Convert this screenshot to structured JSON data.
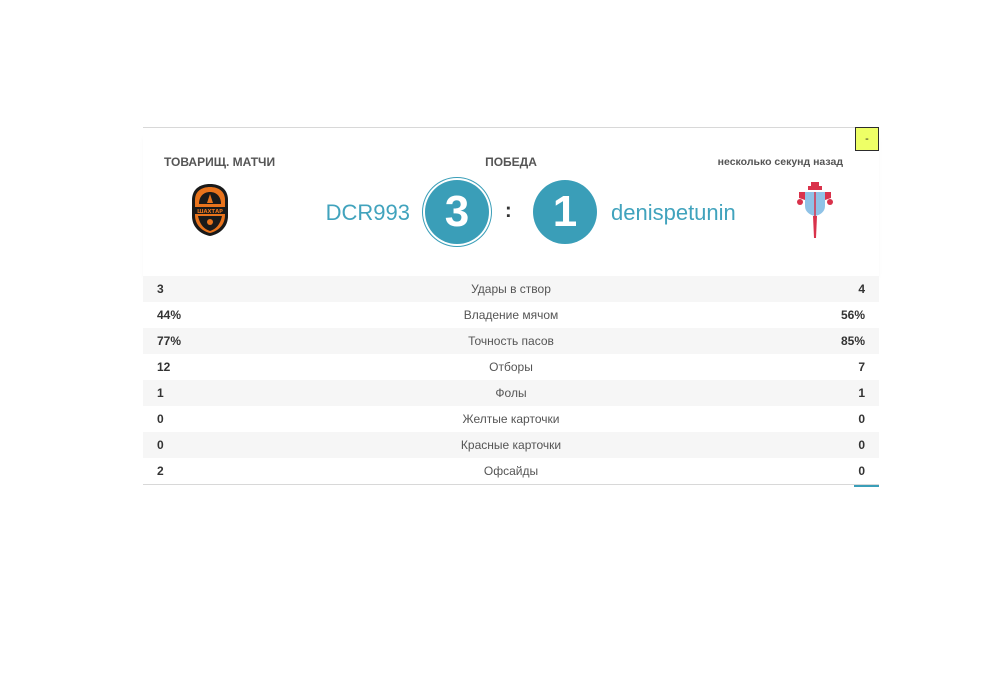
{
  "match": {
    "type_label": "ТОВАРИЩ. МАТЧИ",
    "result_label": "ПОБЕДА",
    "time_label": "несколько секунд назад",
    "flag_label": "-",
    "separator": ":"
  },
  "home": {
    "name": "DCR993",
    "score": "3",
    "logo_icon": "shakhtar-crest-icon",
    "logo_text": "ШАХТАР"
  },
  "away": {
    "name": "denispetunin",
    "score": "1",
    "logo_icon": "celta-crest-icon"
  },
  "stats": [
    {
      "home": "3",
      "label": "Удары в створ",
      "away": "4"
    },
    {
      "home": "44%",
      "label": "Владение мячом",
      "away": "56%"
    },
    {
      "home": "77%",
      "label": "Точность пасов",
      "away": "85%"
    },
    {
      "home": "12",
      "label": "Отборы",
      "away": "7"
    },
    {
      "home": "1",
      "label": "Фолы",
      "away": "1"
    },
    {
      "home": "0",
      "label": "Желтые карточки",
      "away": "0"
    },
    {
      "home": "0",
      "label": "Красные карточки",
      "away": "0"
    },
    {
      "home": "2",
      "label": "Офсайды",
      "away": "0"
    }
  ],
  "colors": {
    "accent": "#3a9eb8",
    "team_name": "#41a3bd",
    "flag_button": "#eeff66",
    "row_alt": "#f6f6f6"
  }
}
